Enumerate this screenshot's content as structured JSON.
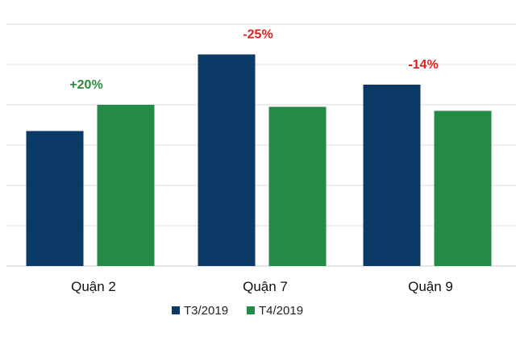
{
  "chart_data": {
    "type": "bar",
    "categories": [
      "Quận 2",
      "Quận 7",
      "Quận 9"
    ],
    "series": [
      {
        "name": "T3/2019",
        "values": [
          33.5,
          52.5,
          45
        ],
        "color": "#0b3a66"
      },
      {
        "name": "T4/2019",
        "values": [
          40,
          39.5,
          38.5
        ],
        "color": "#238b45"
      }
    ],
    "annotations": [
      {
        "category": "Quận 2",
        "text": "+20%",
        "color": "#2e8b3e"
      },
      {
        "category": "Quận 7",
        "text": "-25%",
        "color": "#e02020"
      },
      {
        "category": "Quận 9",
        "text": "-14%",
        "color": "#e02020"
      }
    ],
    "ylim": [
      0,
      60
    ],
    "grid": true,
    "legend_position": "bottom"
  }
}
